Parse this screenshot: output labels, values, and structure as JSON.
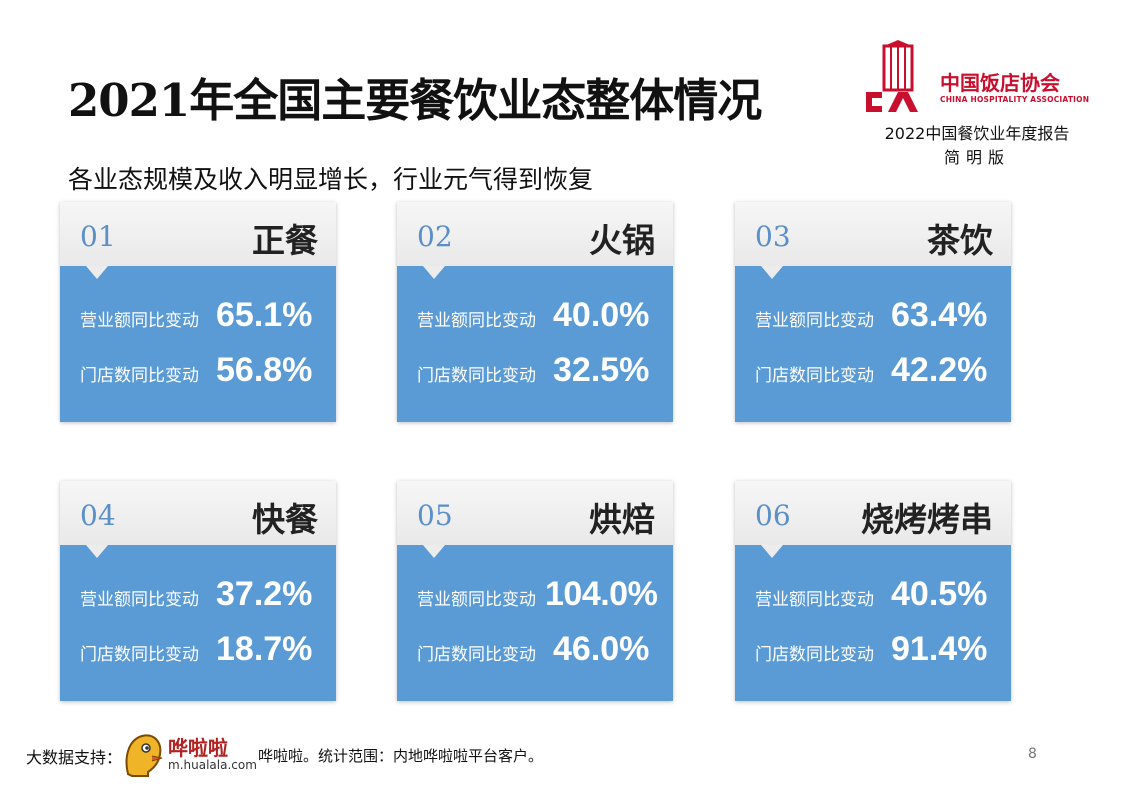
{
  "title": "2021年全国主要餐饮业态整体情况",
  "subtitle": "各业态规模及收入明显增长，行业元气得到恢复",
  "logo": {
    "name_cn": "中国饭店协会",
    "name_en": "CHINA HOSPITALITY ASSOCIATION",
    "report_title": "2022中国餐饮业年度报告",
    "report_subtitle": "简明版",
    "brand_color": "#c8102e"
  },
  "cards": [
    {
      "num": "01",
      "name": "正餐",
      "revenue_label": "营业额同比变动",
      "revenue": "65.1%",
      "stores_label": "门店数同比变动",
      "stores": "56.8%"
    },
    {
      "num": "02",
      "name": "火锅",
      "revenue_label": "营业额同比变动",
      "revenue": "40.0%",
      "stores_label": "门店数同比变动",
      "stores": "32.5%"
    },
    {
      "num": "03",
      "name": "茶饮",
      "revenue_label": "营业额同比变动",
      "revenue": "63.4%",
      "stores_label": "门店数同比变动",
      "stores": "42.2%"
    },
    {
      "num": "04",
      "name": "快餐",
      "revenue_label": "营业额同比变动",
      "revenue": "37.2%",
      "stores_label": "门店数同比变动",
      "stores": "18.7%"
    },
    {
      "num": "05",
      "name": "烘焙",
      "revenue_label": "营业额同比变动",
      "revenue": "104.0%",
      "stores_label": "门店数同比变动",
      "stores": "46.0%"
    },
    {
      "num": "06",
      "name": "烧烤烤串",
      "revenue_label": "营业额同比变动",
      "revenue": "40.5%",
      "stores_label": "门店数同比变动",
      "stores": "91.4%"
    }
  ],
  "card_color": "#5b9bd5",
  "footer": {
    "label": "大数据支持：",
    "partner_name": "哗啦啦",
    "partner_url": "m.hualala.com",
    "note": "哗啦啦。统计范围：内地哗啦啦平台客户。",
    "page_number": "8"
  }
}
